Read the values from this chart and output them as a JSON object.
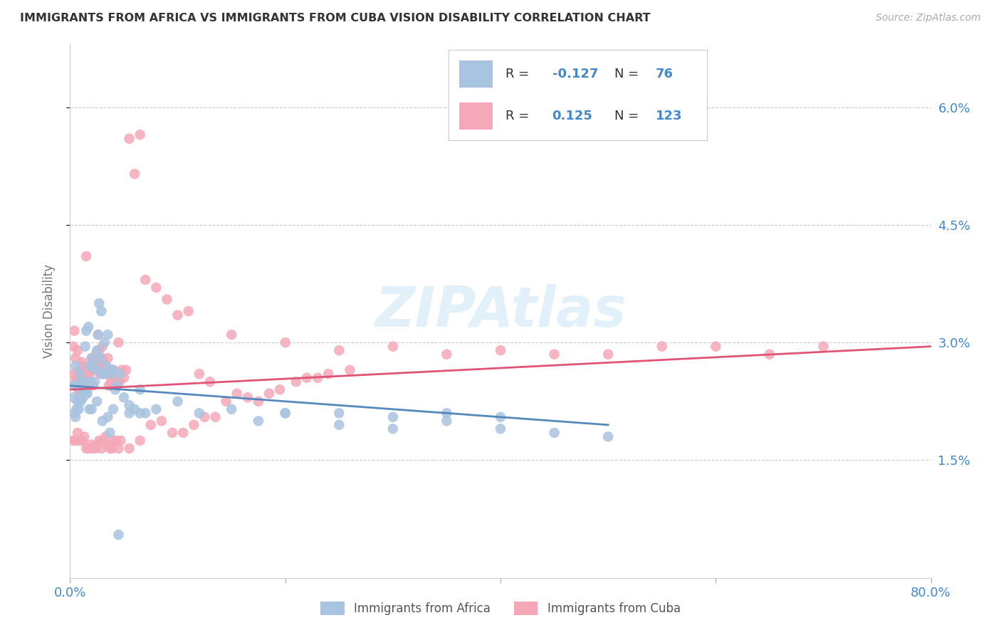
{
  "title": "IMMIGRANTS FROM AFRICA VS IMMIGRANTS FROM CUBA VISION DISABILITY CORRELATION CHART",
  "source": "Source: ZipAtlas.com",
  "ylabel": "Vision Disability",
  "xlim": [
    0.0,
    0.8
  ],
  "ylim": [
    0.0,
    0.068
  ],
  "yticks": [
    0.015,
    0.03,
    0.045,
    0.06
  ],
  "ytick_labels": [
    "1.5%",
    "3.0%",
    "4.5%",
    "6.0%"
  ],
  "africa_R": -0.127,
  "africa_N": 76,
  "cuba_R": 0.125,
  "cuba_N": 123,
  "africa_color": "#a8c4e0",
  "cuba_color": "#f4a8b8",
  "africa_line_color": "#5588bb",
  "cuba_line_color": "#e05575",
  "background_color": "#ffffff",
  "grid_color": "#cccccc",
  "title_color": "#333333",
  "axis_label_color": "#4488cc",
  "watermark_color": "#d0e8f5",
  "africa_x": [
    0.004,
    0.005,
    0.006,
    0.007,
    0.008,
    0.009,
    0.01,
    0.011,
    0.012,
    0.013,
    0.014,
    0.015,
    0.016,
    0.017,
    0.018,
    0.019,
    0.02,
    0.022,
    0.023,
    0.024,
    0.025,
    0.026,
    0.027,
    0.028,
    0.029,
    0.03,
    0.031,
    0.032,
    0.034,
    0.035,
    0.037,
    0.038,
    0.04,
    0.042,
    0.044,
    0.046,
    0.05,
    0.055,
    0.06,
    0.065,
    0.07,
    0.08,
    0.1,
    0.12,
    0.15,
    0.2,
    0.25,
    0.3,
    0.35,
    0.4,
    0.003,
    0.004,
    0.005,
    0.006,
    0.007,
    0.008,
    0.01,
    0.012,
    0.015,
    0.018,
    0.02,
    0.025,
    0.03,
    0.035,
    0.04,
    0.045,
    0.055,
    0.065,
    0.175,
    0.2,
    0.25,
    0.3,
    0.35,
    0.4,
    0.45,
    0.5
  ],
  "africa_y": [
    0.0245,
    0.027,
    0.0245,
    0.0245,
    0.023,
    0.026,
    0.025,
    0.024,
    0.025,
    0.024,
    0.0295,
    0.0315,
    0.0235,
    0.032,
    0.027,
    0.025,
    0.028,
    0.027,
    0.025,
    0.0265,
    0.029,
    0.031,
    0.035,
    0.028,
    0.034,
    0.026,
    0.026,
    0.03,
    0.027,
    0.031,
    0.0185,
    0.026,
    0.0265,
    0.024,
    0.0245,
    0.026,
    0.023,
    0.022,
    0.0215,
    0.024,
    0.021,
    0.0215,
    0.0225,
    0.021,
    0.0215,
    0.021,
    0.021,
    0.0205,
    0.021,
    0.0205,
    0.023,
    0.021,
    0.0205,
    0.0215,
    0.0225,
    0.0215,
    0.0225,
    0.023,
    0.0235,
    0.0215,
    0.0215,
    0.0225,
    0.02,
    0.0205,
    0.0215,
    0.0055,
    0.021,
    0.021,
    0.02,
    0.021,
    0.0195,
    0.019,
    0.02,
    0.019,
    0.0185,
    0.018
  ],
  "cuba_x": [
    0.003,
    0.005,
    0.006,
    0.007,
    0.008,
    0.009,
    0.01,
    0.011,
    0.012,
    0.013,
    0.014,
    0.015,
    0.016,
    0.017,
    0.018,
    0.019,
    0.02,
    0.021,
    0.022,
    0.023,
    0.024,
    0.025,
    0.026,
    0.027,
    0.028,
    0.03,
    0.031,
    0.032,
    0.033,
    0.034,
    0.035,
    0.036,
    0.038,
    0.04,
    0.042,
    0.044,
    0.046,
    0.048,
    0.05,
    0.052,
    0.055,
    0.06,
    0.065,
    0.07,
    0.08,
    0.09,
    0.1,
    0.11,
    0.12,
    0.13,
    0.003,
    0.004,
    0.005,
    0.006,
    0.007,
    0.008,
    0.009,
    0.01,
    0.011,
    0.012,
    0.015,
    0.018,
    0.02,
    0.025,
    0.03,
    0.035,
    0.04,
    0.045,
    0.15,
    0.2,
    0.25,
    0.3,
    0.35,
    0.4,
    0.45,
    0.5,
    0.55,
    0.6,
    0.65,
    0.7,
    0.003,
    0.005,
    0.007,
    0.009,
    0.011,
    0.013,
    0.015,
    0.017,
    0.019,
    0.021,
    0.023,
    0.025,
    0.027,
    0.029,
    0.031,
    0.033,
    0.035,
    0.037,
    0.039,
    0.041,
    0.043,
    0.045,
    0.047,
    0.055,
    0.065,
    0.075,
    0.085,
    0.095,
    0.105,
    0.115,
    0.125,
    0.135,
    0.145,
    0.155,
    0.165,
    0.175,
    0.185,
    0.195,
    0.21,
    0.22,
    0.23,
    0.24,
    0.26
  ],
  "cuba_y": [
    0.026,
    0.028,
    0.0255,
    0.029,
    0.025,
    0.0265,
    0.025,
    0.0275,
    0.027,
    0.026,
    0.0255,
    0.024,
    0.0245,
    0.025,
    0.026,
    0.0265,
    0.027,
    0.0245,
    0.028,
    0.027,
    0.0285,
    0.028,
    0.031,
    0.029,
    0.026,
    0.028,
    0.0275,
    0.0265,
    0.027,
    0.026,
    0.026,
    0.0245,
    0.025,
    0.0265,
    0.0255,
    0.025,
    0.025,
    0.0265,
    0.0255,
    0.0265,
    0.056,
    0.0515,
    0.0565,
    0.038,
    0.037,
    0.0355,
    0.0335,
    0.034,
    0.026,
    0.025,
    0.0295,
    0.0315,
    0.025,
    0.0255,
    0.025,
    0.024,
    0.0235,
    0.025,
    0.023,
    0.024,
    0.041,
    0.026,
    0.028,
    0.027,
    0.0295,
    0.028,
    0.0265,
    0.03,
    0.031,
    0.03,
    0.029,
    0.0295,
    0.0285,
    0.029,
    0.0285,
    0.0285,
    0.0295,
    0.0295,
    0.0285,
    0.0295,
    0.0175,
    0.0175,
    0.0185,
    0.0175,
    0.0175,
    0.018,
    0.0165,
    0.0165,
    0.017,
    0.0165,
    0.0165,
    0.017,
    0.0175,
    0.0165,
    0.0175,
    0.018,
    0.017,
    0.0165,
    0.0165,
    0.0175,
    0.0175,
    0.0165,
    0.0175,
    0.0165,
    0.0175,
    0.0195,
    0.02,
    0.0185,
    0.0185,
    0.0195,
    0.0205,
    0.0205,
    0.0225,
    0.0235,
    0.023,
    0.0225,
    0.0235,
    0.024,
    0.025,
    0.0255,
    0.0255,
    0.026,
    0.0265
  ]
}
